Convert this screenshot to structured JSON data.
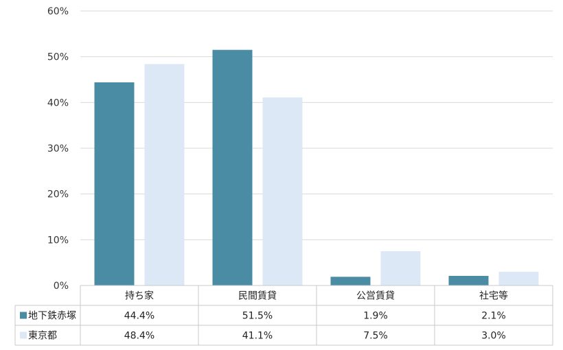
{
  "chart_data": {
    "type": "bar",
    "categories": [
      "持ち家",
      "民間賃貸",
      "公営賃貸",
      "社宅等"
    ],
    "series": [
      {
        "name": "地下鉄赤塚",
        "values": [
          44.4,
          51.5,
          1.9,
          2.1
        ],
        "labels": [
          "44.4%",
          "51.5%",
          "1.9%",
          "2.1%"
        ],
        "color": "#4a8ca3"
      },
      {
        "name": "東京都",
        "values": [
          48.4,
          41.1,
          7.5,
          3.0
        ],
        "labels": [
          "48.4%",
          "41.1%",
          "7.5%",
          "3.0%"
        ],
        "color": "#dce8f5"
      }
    ],
    "ylim": [
      0,
      60
    ],
    "yticks": [
      "0%",
      "10%",
      "20%",
      "30%",
      "40%",
      "50%",
      "60%"
    ],
    "grid": true,
    "data_table": true
  }
}
